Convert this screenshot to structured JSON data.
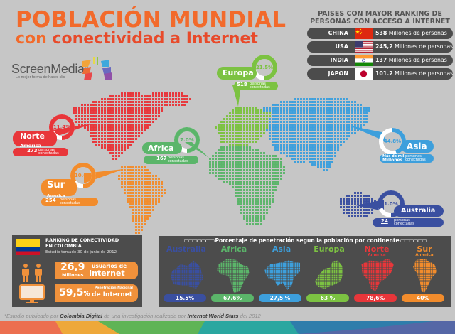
{
  "header": {
    "title_line1": "POBLACIÓN MUNDIAL",
    "title_line2_prefix": "con",
    "title_line2_rest": " conectividad a Internet"
  },
  "logo": {
    "name": "ScreenMedia",
    "registered": "®",
    "tagline": "Lo mejor forma de hacer clic"
  },
  "ranking": {
    "title": "PAISES CON MAYOR RANKING DE PERSONAS CON ACCESO A INTERNET",
    "rows": [
      {
        "country": "CHINA",
        "value": "538",
        "suffix": " Millones de personas",
        "flag": "china"
      },
      {
        "country": "USA",
        "value": "245,2",
        "suffix": " Millones de personas",
        "flag": "usa"
      },
      {
        "country": "INDIA",
        "value": "137",
        "suffix": " Millones de personas",
        "flag": "india"
      },
      {
        "country": "JAPON",
        "value": "101.2",
        "suffix": " Millones de personas",
        "flag": "japan"
      }
    ]
  },
  "regions": {
    "europa": {
      "name": "Europa",
      "pct": "21.5%",
      "num": "518",
      "unit": "Millones",
      "label1": "personas",
      "label2": "conectadas",
      "color": "#7cc242"
    },
    "norte_america": {
      "name": "Norte",
      "name2": "America",
      "pct": "11.4%",
      "num": "273",
      "unit": "Millones",
      "label1": "personas",
      "label2": "conectadas",
      "color": "#e8363a"
    },
    "africa": {
      "name": "Africa",
      "pct": "7.0%",
      "num": "167",
      "unit": "Millones",
      "label1": "personas",
      "label2": "conectadas",
      "color": "#5bb56a"
    },
    "asia": {
      "name": "Asia",
      "pct": "44.8%",
      "num_line1": "Más de mil",
      "num_line2": "Millones",
      "label1": "personas",
      "label2": "conectadas",
      "color": "#3d9fdc"
    },
    "sur_america": {
      "name": "Sur",
      "name2": "America",
      "pct": "10.6%",
      "num": "254",
      "unit": "Millones",
      "label1": "personas",
      "label2": "conectadas",
      "color": "#f28c2c"
    },
    "australia": {
      "name": "Australia",
      "pct": "1.0%",
      "num": "24",
      "unit": "Millones",
      "label1": "personas",
      "label2": "conectadas",
      "color": "#3a4fa0"
    }
  },
  "colombia": {
    "title_line1": "RANKING DE CONECTIVIDAD",
    "title_line2": "EN COLOMBIA",
    "subtitle": "Estudio tomado 30 de junio de 2012",
    "users_big": "26,9",
    "users_unit": "Millones",
    "users_label1": "usuarios de",
    "users_label2": "Internet",
    "pen_big": "59,5",
    "pen_pct_sign": "%",
    "pen_label1": "Penetración Nacional",
    "pen_label2": "de Internet"
  },
  "penetration": {
    "title": "Porcentaje de penetración segun la población por continente",
    "columns": [
      {
        "name": "Australia",
        "name2": "",
        "pct": "15.5%",
        "color": "#3a4fa0"
      },
      {
        "name": "Africa",
        "name2": "",
        "pct": "67.6%",
        "color": "#5bb56a"
      },
      {
        "name": "Asia",
        "name2": "",
        "pct": "27,5 %",
        "color": "#3d9fdc"
      },
      {
        "name": "Europa",
        "name2": "",
        "pct": "63 %",
        "color": "#7cc242"
      },
      {
        "name": "Norte",
        "name2": "America",
        "pct": "78,6%",
        "color": "#e8363a"
      },
      {
        "name": "Sur",
        "name2": "America",
        "pct": "40%",
        "color": "#f28c2c"
      }
    ]
  },
  "footnote": {
    "p1": "*Estudio publicado por ",
    "b1": "Colombia Digital",
    "p2": " de una investigación realizada por ",
    "b2": "Internet World Stats",
    "p3": " del 2012"
  }
}
